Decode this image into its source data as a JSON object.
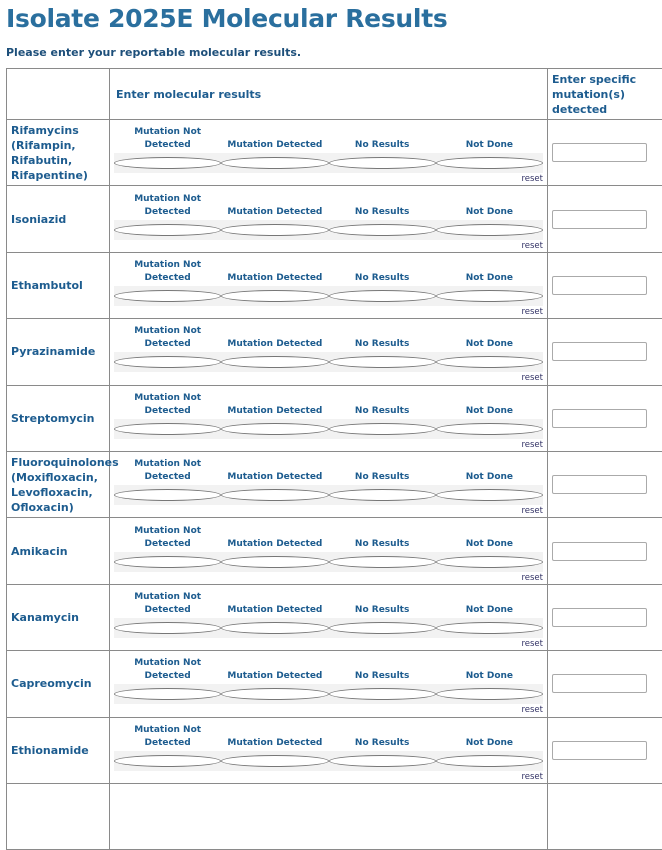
{
  "page": {
    "title": "Isolate 2025E Molecular Results",
    "subtitle": "Please enter your reportable molecular results."
  },
  "table": {
    "header_results": "Enter molecular results",
    "header_mutations": "Enter specific mutation(s) detected",
    "options": [
      "Mutation Not Detected",
      "Mutation Detected",
      "No Results",
      "Not Done"
    ],
    "reset_label": "reset",
    "drugs": [
      "Rifamycins (Rifampin, Rifabutin, Rifapentine)",
      "Isoniazid",
      "Ethambutol",
      "Pyrazinamide",
      "Streptomycin",
      "Fluoroquinolones (Moxifloxacin, Levofloxacin, Ofloxacin)",
      "Amikacin",
      "Kanamycin",
      "Capreomycin",
      "Ethionamide"
    ]
  },
  "colors": {
    "title": "#2a6f9e",
    "label": "#1d5c8f",
    "reset": "#333366"
  }
}
